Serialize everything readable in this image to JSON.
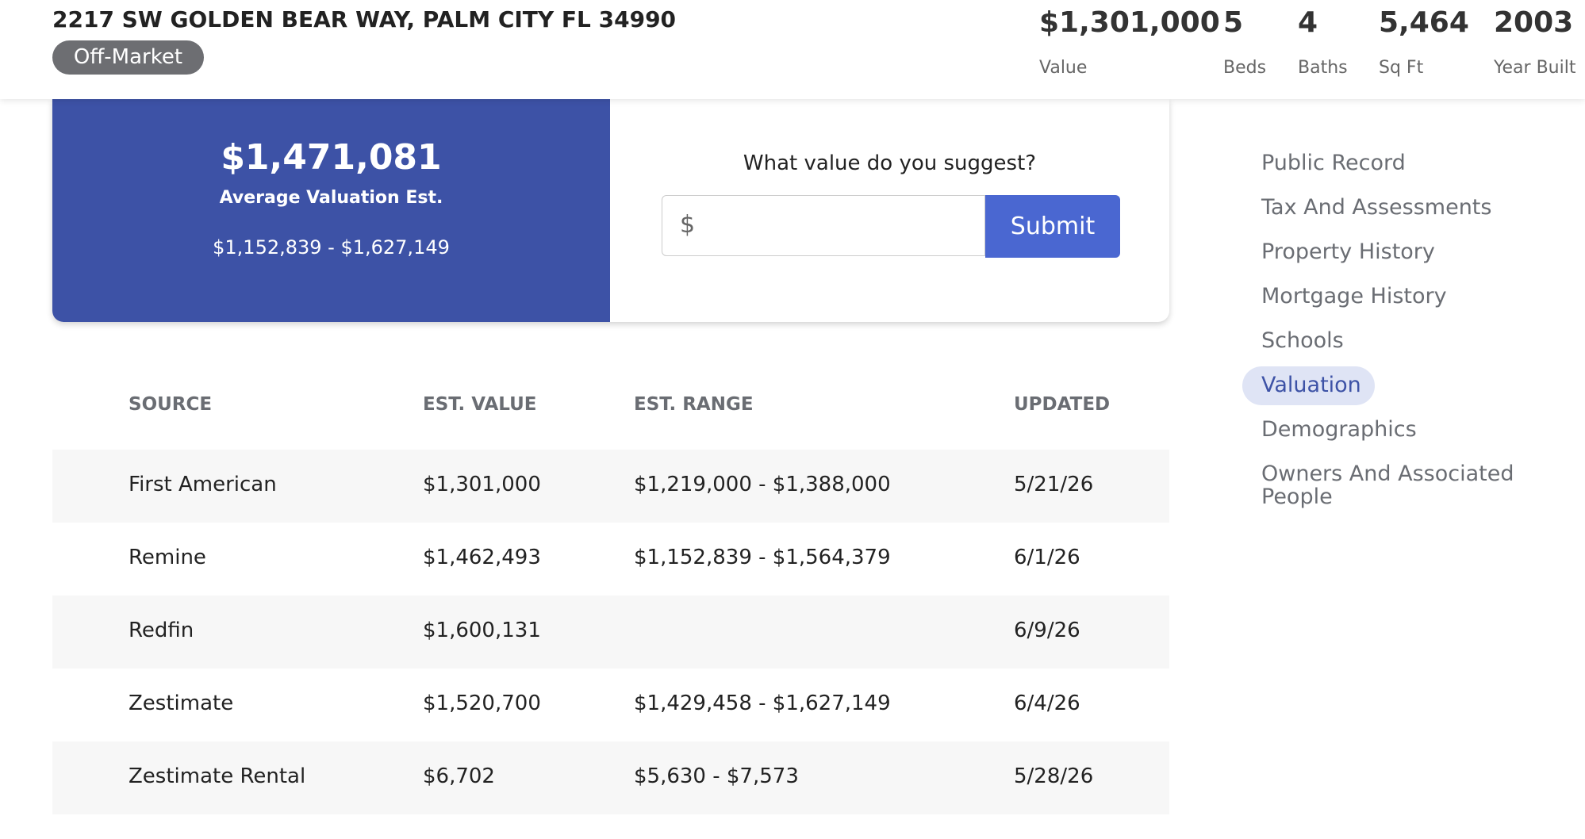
{
  "header": {
    "address": "2217 SW GOLDEN BEAR WAY, PALM CITY FL 34990",
    "status": "Off-Market",
    "stats": [
      {
        "value": "$1,301,000",
        "label": "Value"
      },
      {
        "value": "5",
        "label": "Beds"
      },
      {
        "value": "4",
        "label": "Baths"
      },
      {
        "value": "5,464",
        "label": "Sq Ft"
      },
      {
        "value": "2003",
        "label": "Year Built"
      }
    ]
  },
  "valuation": {
    "average": "$1,471,081",
    "average_label": "Average Valuation Est.",
    "range": "$1,152,839 - $1,627,149"
  },
  "suggest": {
    "question": "What value do you suggest?",
    "placeholder": "$",
    "button": "Submit"
  },
  "table": {
    "columns": [
      "SOURCE",
      "EST. VALUE",
      "EST. RANGE",
      "UPDATED"
    ],
    "rows": [
      [
        "First American",
        "$1,301,000",
        "$1,219,000 - $1,388,000",
        "5/21/26"
      ],
      [
        "Remine",
        "$1,462,493",
        "$1,152,839 - $1,564,379",
        "6/1/26"
      ],
      [
        "Redfin",
        "$1,600,131",
        null,
        "6/9/26"
      ],
      [
        "Zestimate",
        "$1,520,700",
        "$1,429,458 - $1,627,149",
        "6/4/26"
      ],
      [
        "Zestimate Rental",
        "$6,702",
        "$5,630 - $7,573",
        "5/28/26"
      ]
    ]
  },
  "nav": {
    "items": [
      "Public Record",
      "Tax And Assessments",
      "Property History",
      "Mortgage History",
      "Schools",
      "Valuation",
      "Demographics",
      "Owners And Associated People"
    ]
  }
}
